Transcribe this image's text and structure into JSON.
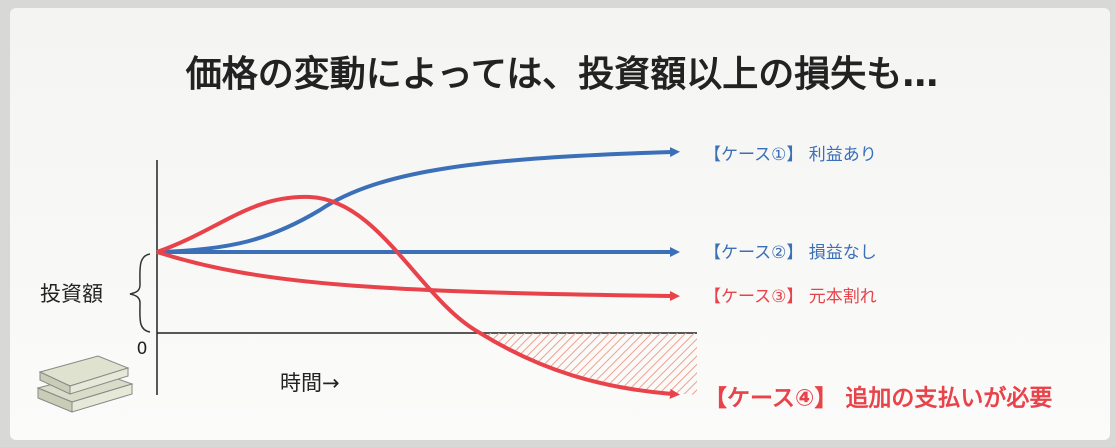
{
  "title": "価格の変動によっては、投資額以上の損失も…",
  "y_label": "投資額",
  "origin_label": "0",
  "x_label": "時間→",
  "cases": [
    {
      "label": "【ケース①】 利益あり"
    },
    {
      "label": "【ケース②】 損益なし"
    },
    {
      "label": "【ケース③】 元本割れ"
    },
    {
      "label": "【ケース④】 追加の支払いが必要"
    }
  ]
}
